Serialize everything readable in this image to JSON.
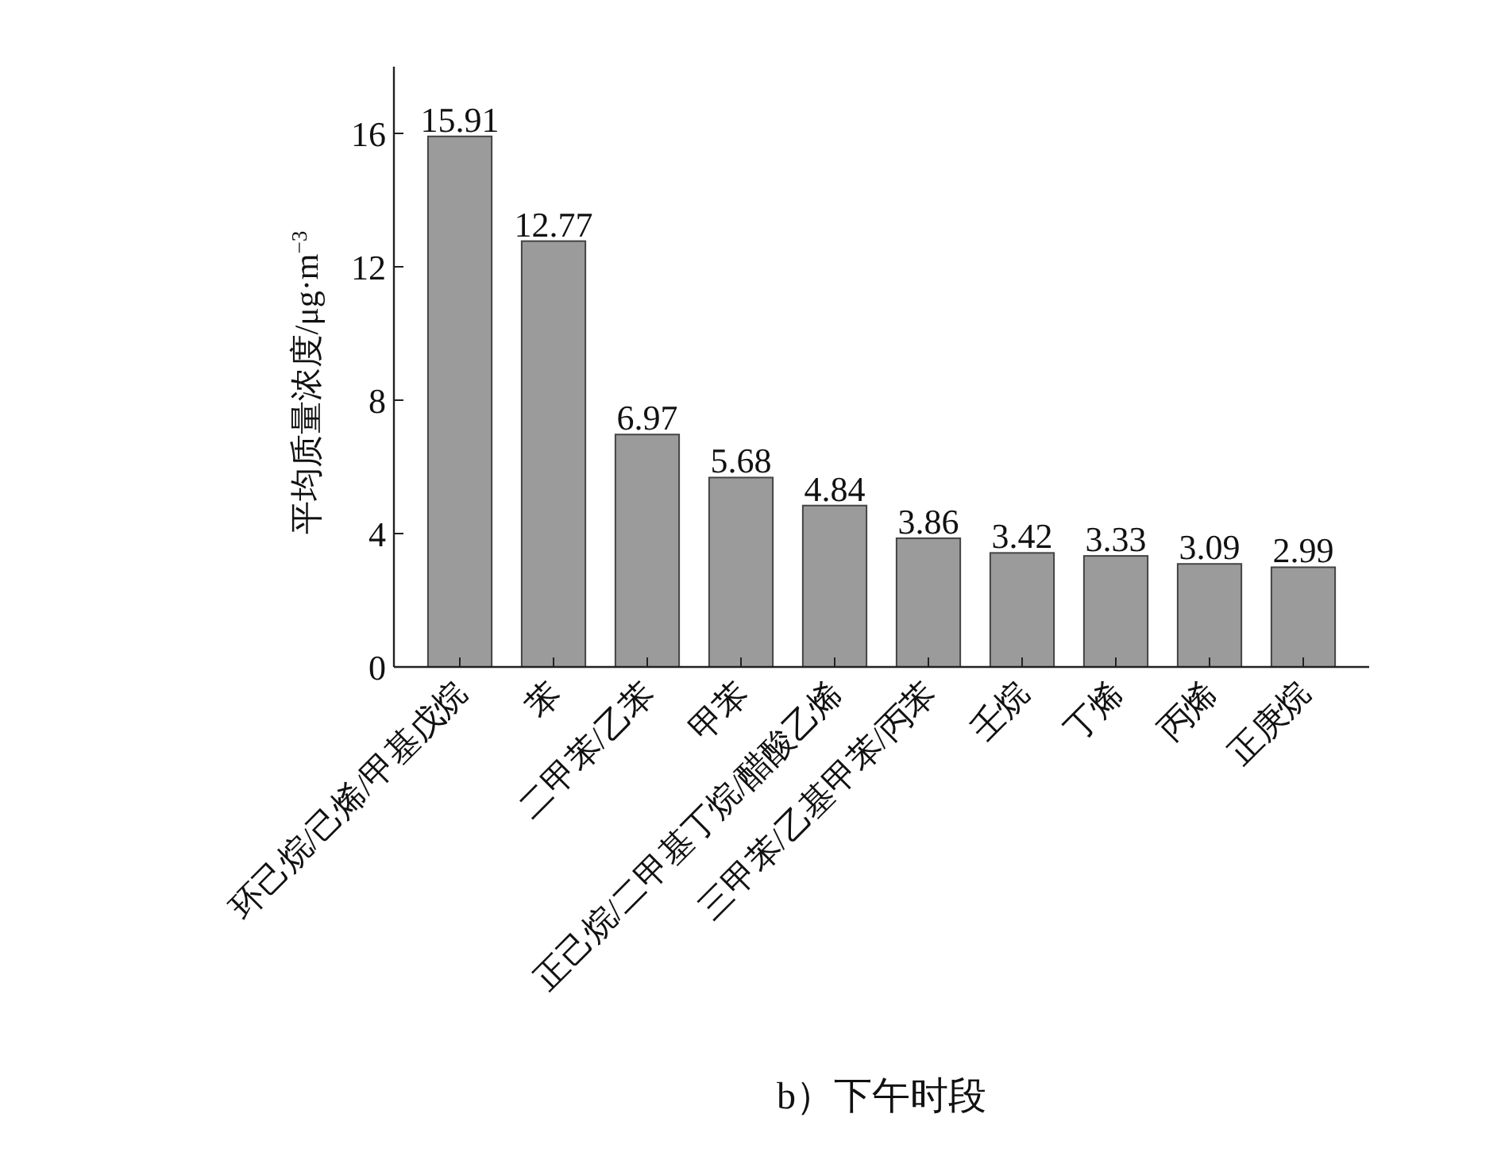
{
  "chart_data": {
    "type": "bar",
    "title": "b）下午时段",
    "ylabel": "平均质量浓度/μg·m$^{−3}$",
    "categories": [
      "环己烷/己烯/甲基戊烷",
      "苯",
      "二甲苯/乙苯",
      "甲苯",
      "正己烷/二甲基丁烷/醋酸乙烯",
      "三甲苯/乙基甲苯/丙苯",
      "壬烷",
      "丁烯",
      "丙烯",
      "正庚烷"
    ],
    "values": [
      15.91,
      12.77,
      6.97,
      5.68,
      4.84,
      3.86,
      3.42,
      3.33,
      3.09,
      2.99
    ],
    "color": "#9b9b9b",
    "ylim": [
      0,
      18
    ],
    "yticks": [
      0,
      4,
      8,
      12,
      16
    ],
    "data_labels": true
  }
}
